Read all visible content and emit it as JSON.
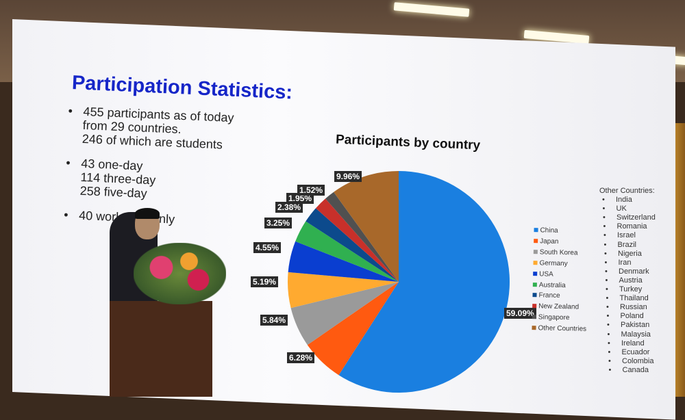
{
  "slide": {
    "title": "Participation Statistics:",
    "bullets": [
      [
        "455 participants as of today",
        "from 29 countries.",
        "246 of which are students"
      ],
      [
        "43 one-day",
        "114 three-day",
        "258 five-day"
      ],
      [
        "40 workshop only"
      ]
    ],
    "bullet_char": "•"
  },
  "chart_data": {
    "type": "pie",
    "title": "Participants by country",
    "start_angle": "top, clockwise",
    "categories": [
      "China",
      "Japan",
      "South Korea",
      "Germany",
      "USA",
      "Australia",
      "France",
      "New Zealand",
      "Singapore",
      "Other Countries"
    ],
    "values": [
      59.09,
      6.28,
      5.84,
      5.19,
      4.55,
      3.25,
      2.38,
      1.95,
      1.52,
      9.96
    ],
    "labels": [
      "59.09%",
      "6.28%",
      "5.84%",
      "5.19%",
      "4.55%",
      "3.25%",
      "2.38%",
      "1.95%",
      "1.52%",
      "9.96%"
    ],
    "colors": [
      "#1a7fe0",
      "#ff5a10",
      "#9a9a9a",
      "#ffaa30",
      "#0a3ed0",
      "#30b050",
      "#0c4a8c",
      "#c8302a",
      "#505050",
      "#a8682a"
    ],
    "legend_placement": "right"
  },
  "other_countries": {
    "heading": "Other Countries:",
    "items": [
      "India",
      "UK",
      "Switzerland",
      "Romania",
      "Israel",
      "Brazil",
      "Nigeria",
      "Iran",
      "Denmark",
      "Austria",
      "Turkey",
      "Thailand",
      "Russian",
      "Poland",
      "Pakistan",
      "Malaysia",
      "Ireland",
      "Ecuador",
      "Colombia",
      "Canada"
    ]
  }
}
